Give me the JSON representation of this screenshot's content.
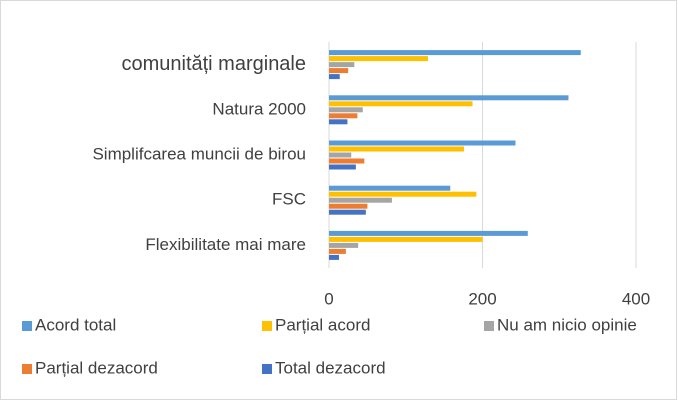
{
  "chart_data": {
    "type": "bar",
    "orientation": "horizontal",
    "categories": [
      "comunități marginale",
      "Natura 2000",
      "Simplifcarea muncii de birou",
      "FSC",
      "Flexibilitate mai mare"
    ],
    "series": [
      {
        "name": "Acord total",
        "color": "#5b9bd5",
        "values": [
          328,
          312,
          243,
          158,
          259
        ]
      },
      {
        "name": "Parțial acord",
        "color": "#ffc000",
        "values": [
          129,
          187,
          176,
          192,
          200
        ]
      },
      {
        "name": "Nu am nicio opinie",
        "color": "#a5a5a5",
        "values": [
          33,
          44,
          29,
          82,
          38
        ]
      },
      {
        "name": "Parțial dezacord",
        "color": "#ed7d31",
        "values": [
          25,
          37,
          46,
          50,
          22
        ]
      },
      {
        "name": "Total dezacord",
        "color": "#4472c4",
        "values": [
          14,
          24,
          35,
          48,
          13
        ]
      }
    ],
    "xlim": [
      0,
      440
    ],
    "xticks": [
      0,
      200,
      400
    ],
    "grid": true
  }
}
